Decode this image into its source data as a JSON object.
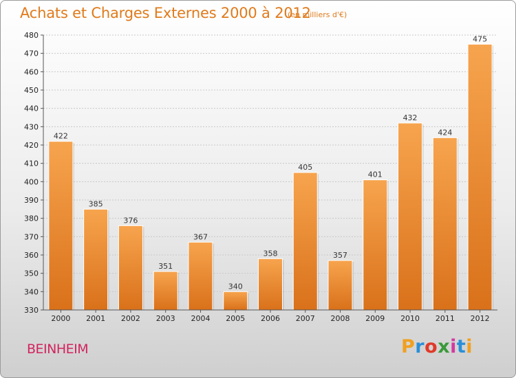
{
  "header": {
    "title": "Achats et Charges Externes 2000 à 2012",
    "subtitle": "(en milliers d'€)"
  },
  "location": "BEINHEIM",
  "logo": {
    "letters": [
      "P",
      "r",
      "o",
      "x",
      "i",
      "t",
      "i"
    ],
    "colors": [
      "#f0a020",
      "#2a8fd8",
      "#e03a2a",
      "#3a9a3a",
      "#d23aa0",
      "#2a8fd8",
      "#f0a020"
    ]
  },
  "chart_data": {
    "type": "bar",
    "categories": [
      "2000",
      "2001",
      "2002",
      "2003",
      "2004",
      "2005",
      "2006",
      "2007",
      "2008",
      "2009",
      "2010",
      "2011",
      "2012"
    ],
    "values": [
      422,
      385,
      376,
      351,
      367,
      340,
      358,
      405,
      357,
      401,
      432,
      424,
      475
    ],
    "ylim": [
      330,
      480
    ],
    "yticks": [
      330,
      340,
      350,
      360,
      370,
      380,
      390,
      400,
      410,
      420,
      430,
      440,
      450,
      460,
      470,
      480
    ],
    "grid": true,
    "bar_color": "#f0922e"
  }
}
